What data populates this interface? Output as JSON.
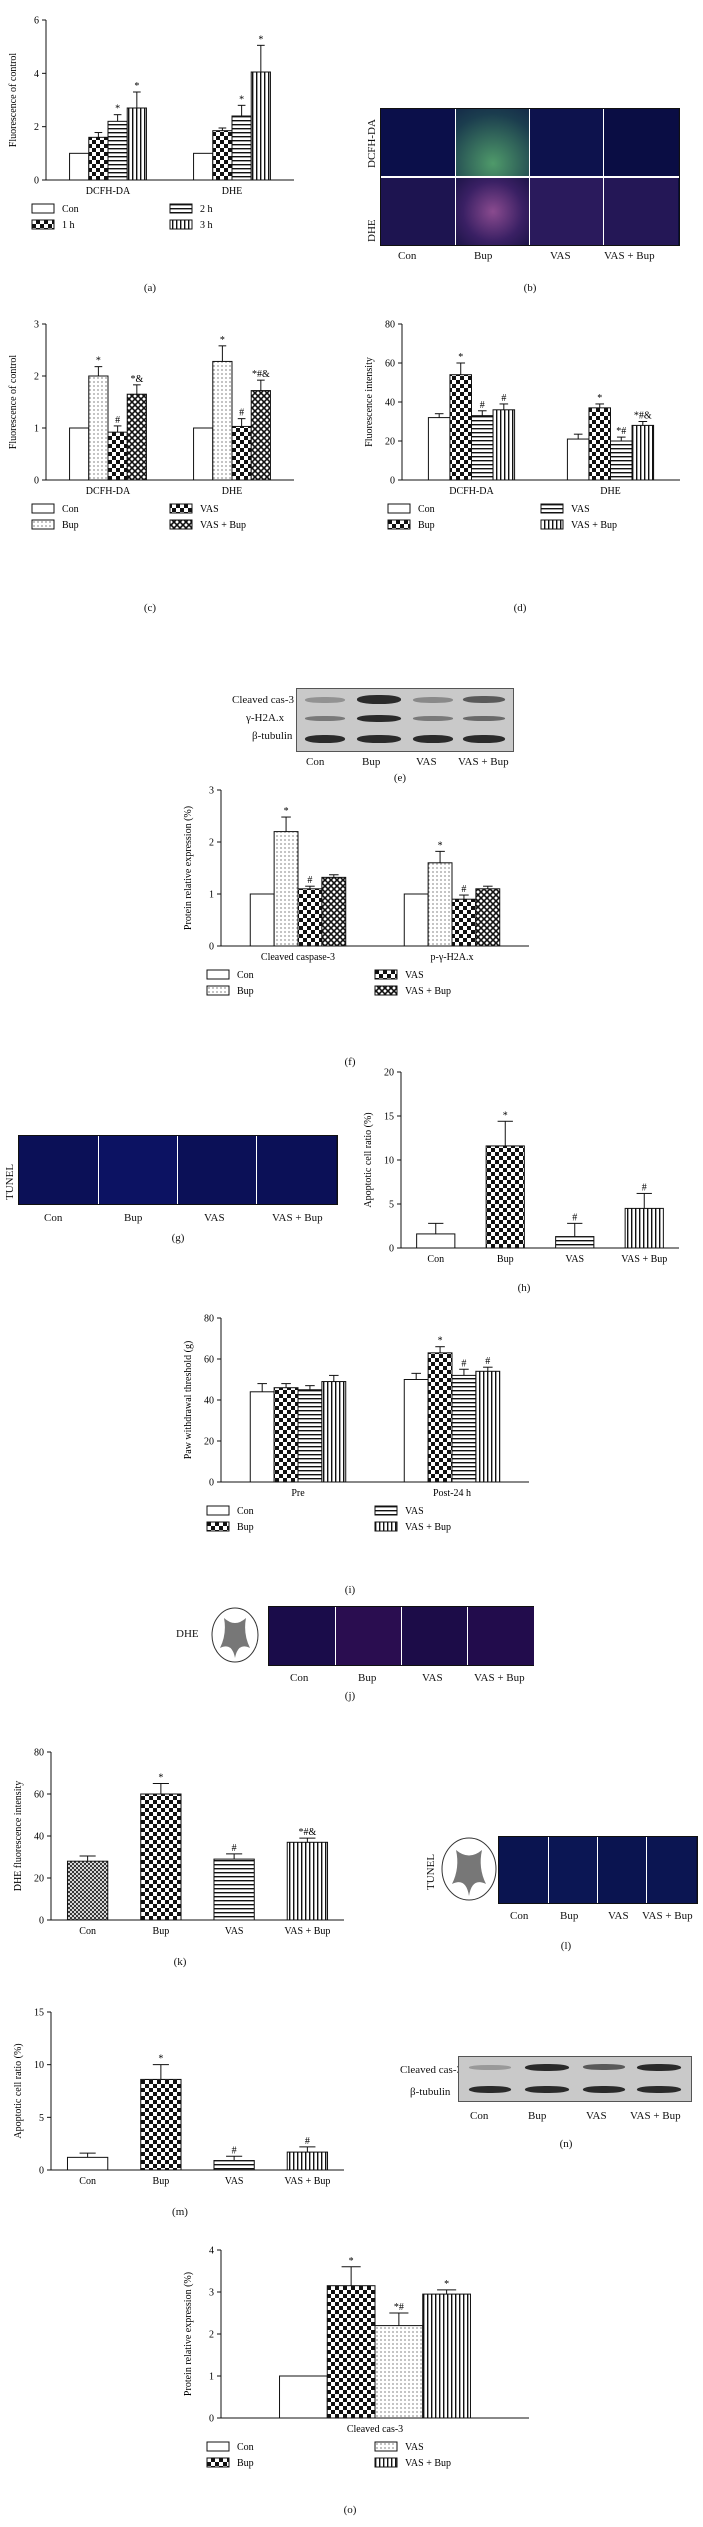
{
  "panel_labels": [
    "(a)",
    "(b)",
    "(c)",
    "(d)",
    "(e)",
    "(f)",
    "(g)",
    "(h)",
    "(i)",
    "(j)",
    "(k)",
    "(l)",
    "(m)",
    "(n)",
    "(o)"
  ],
  "chart_data": [
    {
      "id": "a",
      "type": "bar",
      "ylabel": "Fluorescence of control",
      "ylim": [
        0,
        6
      ],
      "yticks": [
        0,
        2,
        4,
        6
      ],
      "categories": [
        "DCFH-DA",
        "DHE"
      ],
      "series": [
        {
          "name": "Con",
          "values": [
            1,
            1
          ],
          "err": [
            0,
            0
          ],
          "sig": [
            "",
            ""
          ]
        },
        {
          "name": "1 h",
          "values": [
            1.6,
            1.85
          ],
          "err": [
            0.18,
            0.1
          ],
          "sig": [
            "",
            ""
          ]
        },
        {
          "name": "2 h",
          "values": [
            2.2,
            2.4
          ],
          "err": [
            0.25,
            0.4
          ],
          "sig": [
            "*",
            "*"
          ]
        },
        {
          "name": "3 h",
          "values": [
            2.7,
            4.05
          ],
          "err": [
            0.6,
            1.0
          ],
          "sig": [
            "*",
            "*"
          ]
        }
      ],
      "legend": [
        "Con",
        "2 h",
        "1 h",
        "3 h"
      ],
      "patterns": [
        "white",
        "checker",
        "hstripe",
        "vstripe"
      ]
    },
    {
      "id": "c",
      "type": "bar",
      "ylabel": "Fluorescence of control",
      "ylim": [
        0,
        3
      ],
      "yticks": [
        0,
        1,
        2,
        3
      ],
      "categories": [
        "DCFH-DA",
        "DHE"
      ],
      "series": [
        {
          "name": "Con",
          "values": [
            1,
            1
          ],
          "err": [
            0,
            0
          ],
          "sig": [
            "",
            ""
          ]
        },
        {
          "name": "Bup",
          "values": [
            2.0,
            2.28
          ],
          "err": [
            0.18,
            0.3
          ],
          "sig": [
            "*",
            "*"
          ]
        },
        {
          "name": "VAS",
          "values": [
            0.92,
            1.03
          ],
          "err": [
            0.12,
            0.15
          ],
          "sig": [
            "#",
            "#"
          ]
        },
        {
          "name": "VAS + Bup",
          "values": [
            1.65,
            1.72
          ],
          "err": [
            0.18,
            0.2
          ],
          "sig": [
            "*&",
            "*#&"
          ]
        }
      ],
      "legend": [
        "Con",
        "VAS",
        "Bup",
        "VAS + Bup"
      ],
      "patterns": [
        "white",
        "dots",
        "checker",
        "diagcross"
      ]
    },
    {
      "id": "d",
      "type": "bar",
      "ylabel": "Fluorescence intensity",
      "ylim": [
        0,
        80
      ],
      "yticks": [
        0,
        20,
        40,
        60,
        80
      ],
      "categories": [
        "DCFH-DA",
        "DHE"
      ],
      "series": [
        {
          "name": "Con",
          "values": [
            32,
            21
          ],
          "err": [
            2,
            2.5
          ],
          "sig": [
            "",
            ""
          ]
        },
        {
          "name": "Bup",
          "values": [
            54,
            37
          ],
          "err": [
            6,
            2
          ],
          "sig": [
            "*",
            "*"
          ]
        },
        {
          "name": "VAS",
          "values": [
            33,
            20
          ],
          "err": [
            2.5,
            2
          ],
          "sig": [
            "#",
            "*#"
          ]
        },
        {
          "name": "VAS + Bup",
          "values": [
            36,
            28
          ],
          "err": [
            3,
            2
          ],
          "sig": [
            "#",
            "*#&"
          ]
        }
      ],
      "legend": [
        "Con",
        "VAS",
        "Bup",
        "VAS + Bup"
      ],
      "patterns": [
        "white",
        "checker",
        "hstripe",
        "vstripe"
      ]
    },
    {
      "id": "f",
      "type": "bar",
      "ylabel": "Protein relative expression (%)",
      "ylim": [
        0,
        3
      ],
      "yticks": [
        0,
        1,
        2,
        3
      ],
      "categories": [
        "Cleaved caspase-3",
        "p-γ-H2A.x"
      ],
      "series": [
        {
          "name": "Con",
          "values": [
            1,
            1
          ],
          "err": [
            0,
            0
          ],
          "sig": [
            "",
            ""
          ]
        },
        {
          "name": "Bup",
          "values": [
            2.2,
            1.6
          ],
          "err": [
            0.28,
            0.22
          ],
          "sig": [
            "*",
            "*"
          ]
        },
        {
          "name": "VAS",
          "values": [
            1.1,
            0.9
          ],
          "err": [
            0.05,
            0.08
          ],
          "sig": [
            "#",
            "#"
          ]
        },
        {
          "name": "VAS + Bup",
          "values": [
            1.32,
            1.1
          ],
          "err": [
            0.05,
            0.05
          ],
          "sig": [
            "",
            ""
          ]
        }
      ],
      "legend": [
        "Con",
        "VAS",
        "Bup",
        "VAS + Bup"
      ],
      "patterns": [
        "white",
        "dots",
        "checker",
        "diagcross"
      ]
    },
    {
      "id": "h",
      "type": "bar",
      "ylabel": "Apoptotic cell ratio (%)",
      "ylim": [
        0,
        20
      ],
      "yticks": [
        0,
        5,
        10,
        15,
        20
      ],
      "categories": [
        "Con",
        "Bup",
        "VAS",
        "VAS + Bup"
      ],
      "values": [
        1.6,
        11.6,
        1.3,
        4.5
      ],
      "err": [
        1.2,
        2.8,
        1.5,
        1.7
      ],
      "sig": [
        "",
        "*",
        "#",
        "#"
      ],
      "patterns": [
        "white",
        "checker",
        "hstripe",
        "vstripe"
      ]
    },
    {
      "id": "i",
      "type": "bar",
      "ylabel": "Paw withdrawal threshold (g)",
      "ylim": [
        0,
        80
      ],
      "yticks": [
        0,
        20,
        40,
        60,
        80
      ],
      "categories": [
        "Pre",
        "Post-24 h"
      ],
      "series": [
        {
          "name": "Con",
          "values": [
            44,
            50
          ],
          "err": [
            4,
            3
          ],
          "sig": [
            "",
            ""
          ]
        },
        {
          "name": "Bup",
          "values": [
            46,
            63
          ],
          "err": [
            2,
            3
          ],
          "sig": [
            "",
            "*"
          ]
        },
        {
          "name": "VAS",
          "values": [
            45,
            52
          ],
          "err": [
            2,
            3
          ],
          "sig": [
            "",
            "#"
          ]
        },
        {
          "name": "VAS + Bup",
          "values": [
            49,
            54
          ],
          "err": [
            3,
            2
          ],
          "sig": [
            "",
            "#"
          ]
        }
      ],
      "legend": [
        "Con",
        "VAS",
        "Bup",
        "VAS + Bup"
      ],
      "patterns": [
        "white",
        "checker",
        "hstripe",
        "vstripe"
      ]
    },
    {
      "id": "k",
      "type": "bar",
      "ylabel": "DHE fluorescence intensity",
      "ylim": [
        0,
        80
      ],
      "yticks": [
        0,
        20,
        40,
        60,
        80
      ],
      "categories": [
        "Con",
        "Bup",
        "VAS",
        "VAS + Bup"
      ],
      "values": [
        28,
        60,
        29,
        37
      ],
      "err": [
        2.5,
        5,
        2.5,
        2
      ],
      "sig": [
        "",
        "*",
        "#",
        "*#&"
      ],
      "patterns": [
        "crosshatch",
        "checker",
        "hstripe",
        "vstripe"
      ]
    },
    {
      "id": "m",
      "type": "bar",
      "ylabel": "Apoptotic cell ratio (%)",
      "ylim": [
        0,
        15
      ],
      "yticks": [
        0,
        5,
        10,
        15
      ],
      "categories": [
        "Con",
        "Bup",
        "VAS",
        "VAS + Bup"
      ],
      "values": [
        1.2,
        8.6,
        0.9,
        1.7
      ],
      "err": [
        0.4,
        1.4,
        0.4,
        0.5
      ],
      "sig": [
        "",
        "*",
        "#",
        "#"
      ],
      "patterns": [
        "white",
        "checker",
        "hstripe",
        "vstripe"
      ]
    },
    {
      "id": "o",
      "type": "bar",
      "ylabel": "Protein relative expression (%)",
      "ylim": [
        0,
        4
      ],
      "yticks": [
        0,
        1,
        2,
        3,
        4
      ],
      "categories": [
        "Cleaved cas-3"
      ],
      "series": [
        {
          "name": "Con",
          "values": [
            1
          ],
          "err": [
            0
          ],
          "sig": [
            ""
          ]
        },
        {
          "name": "Bup",
          "values": [
            3.15
          ],
          "err": [
            0.45
          ],
          "sig": [
            "*"
          ]
        },
        {
          "name": "VAS",
          "values": [
            2.2
          ],
          "err": [
            0.3
          ],
          "sig": [
            "*#"
          ]
        },
        {
          "name": "VAS + Bup",
          "values": [
            2.95
          ],
          "err": [
            0.1
          ],
          "sig": [
            "*"
          ]
        }
      ],
      "legend": [
        "Con",
        "VAS",
        "Bup",
        "VAS + Bup"
      ],
      "patterns": [
        "white",
        "checker",
        "dots",
        "vstripe"
      ]
    }
  ],
  "micrographs": {
    "b": {
      "rows": [
        "DCFH-DA",
        "DHE"
      ],
      "cols": [
        "Con",
        "Bup",
        "VAS",
        "VAS + Bup"
      ]
    },
    "g": {
      "row": "TUNEL",
      "cols": [
        "Con",
        "Bup",
        "VAS",
        "VAS + Bup"
      ]
    },
    "j": {
      "row": "DHE",
      "cols": [
        "Con",
        "Bup",
        "VAS",
        "VAS + Bup"
      ]
    },
    "l": {
      "row": "TUNEL",
      "cols": [
        "Con",
        "Bup",
        "VAS",
        "VAS + Bup"
      ]
    }
  },
  "blots": {
    "e": {
      "bands": [
        "Cleaved cas-3",
        "γ-H2A.x",
        "β-tubulin"
      ],
      "lanes": [
        "Con",
        "Bup",
        "VAS",
        "VAS + Bup"
      ]
    },
    "n": {
      "bands": [
        "Cleaved cas-3",
        "β-tubulin"
      ],
      "lanes": [
        "Con",
        "Bup",
        "VAS",
        "VAS + Bup"
      ]
    }
  }
}
